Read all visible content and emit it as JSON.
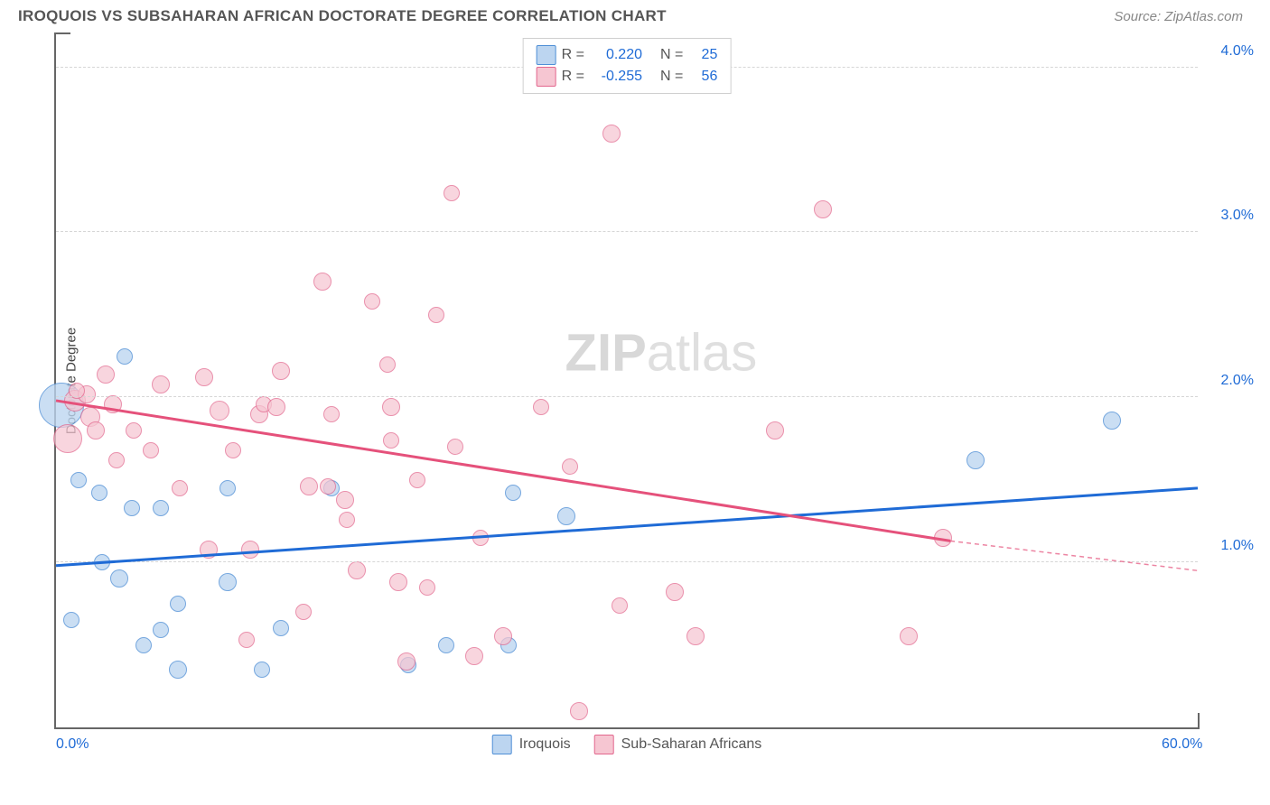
{
  "header": {
    "title": "IROQUOIS VS SUBSAHARAN AFRICAN DOCTORATE DEGREE CORRELATION CHART",
    "source_prefix": "Source: ",
    "source_name": "ZipAtlas.com"
  },
  "watermark": {
    "zip": "ZIP",
    "atlas": "atlas"
  },
  "chart": {
    "type": "scatter",
    "y_axis_title": "Doctorate Degree",
    "xlim": [
      0,
      60
    ],
    "ylim": [
      0,
      4.2
    ],
    "x_ticks": [
      {
        "value": 0,
        "label": "0.0%"
      },
      {
        "value": 60,
        "label": "60.0%"
      }
    ],
    "y_ticks": [
      {
        "value": 1.0,
        "label": "1.0%"
      },
      {
        "value": 2.0,
        "label": "2.0%"
      },
      {
        "value": 3.0,
        "label": "3.0%"
      },
      {
        "value": 4.0,
        "label": "4.0%"
      }
    ],
    "grid_color": "#d6d6d6",
    "background_color": "#ffffff",
    "stats_legend": [
      {
        "swatch_fill": "#bcd5f0",
        "swatch_stroke": "#4f8fd6",
        "r_label": "R =",
        "r_value": "0.220",
        "n_label": "N =",
        "n_value": "25"
      },
      {
        "swatch_fill": "#f6c6d2",
        "swatch_stroke": "#e2668d",
        "r_label": "R =",
        "r_value": "-0.255",
        "n_label": "N =",
        "n_value": "56"
      }
    ],
    "bottom_legend": [
      {
        "swatch_fill": "#bcd5f0",
        "swatch_stroke": "#4f8fd6",
        "label": "Iroquois"
      },
      {
        "swatch_fill": "#f6c6d2",
        "swatch_stroke": "#e2668d",
        "label": "Sub-Saharan Africans"
      }
    ],
    "series": [
      {
        "name": "Iroquois",
        "marker_fill": "#bcd5f0",
        "marker_stroke": "#4f8fd6",
        "marker_opacity": 0.78,
        "base_radius": 9,
        "trend": {
          "color": "#1f6bd6",
          "width": 3,
          "x1": 0,
          "y1": 0.98,
          "x2": 60,
          "y2": 1.45
        },
        "points": [
          {
            "x": 0.3,
            "y": 1.95,
            "r": 25
          },
          {
            "x": 3.6,
            "y": 2.25,
            "r": 9
          },
          {
            "x": 1.2,
            "y": 1.5,
            "r": 9
          },
          {
            "x": 2.3,
            "y": 1.42,
            "r": 9
          },
          {
            "x": 3.3,
            "y": 0.9,
            "r": 10
          },
          {
            "x": 4.6,
            "y": 0.5,
            "r": 9
          },
          {
            "x": 0.8,
            "y": 0.65,
            "r": 9
          },
          {
            "x": 4.0,
            "y": 1.33,
            "r": 9
          },
          {
            "x": 5.5,
            "y": 1.33,
            "r": 9
          },
          {
            "x": 6.4,
            "y": 0.35,
            "r": 10
          },
          {
            "x": 9.0,
            "y": 0.88,
            "r": 10
          },
          {
            "x": 9.0,
            "y": 1.45,
            "r": 9
          },
          {
            "x": 5.5,
            "y": 0.59,
            "r": 9
          },
          {
            "x": 10.8,
            "y": 0.35,
            "r": 9
          },
          {
            "x": 6.4,
            "y": 0.75,
            "r": 9
          },
          {
            "x": 11.8,
            "y": 0.6,
            "r": 9
          },
          {
            "x": 14.5,
            "y": 1.45,
            "r": 9
          },
          {
            "x": 18.5,
            "y": 0.38,
            "r": 9
          },
          {
            "x": 20.5,
            "y": 0.5,
            "r": 9
          },
          {
            "x": 23.8,
            "y": 0.5,
            "r": 9
          },
          {
            "x": 24.0,
            "y": 1.42,
            "r": 9
          },
          {
            "x": 26.8,
            "y": 1.28,
            "r": 10
          },
          {
            "x": 48.3,
            "y": 1.62,
            "r": 10
          },
          {
            "x": 55.5,
            "y": 1.86,
            "r": 10
          },
          {
            "x": 2.4,
            "y": 1.0,
            "r": 9
          }
        ]
      },
      {
        "name": "Sub-Saharan Africans",
        "marker_fill": "#f6c6d2",
        "marker_stroke": "#e2668d",
        "marker_opacity": 0.72,
        "base_radius": 9,
        "trend": {
          "color": "#e5517b",
          "width": 3,
          "x1": 0,
          "y1": 1.98,
          "x2": 47,
          "y2": 1.13,
          "dashed_ext": {
            "x2": 60,
            "y2": 0.95
          }
        },
        "points": [
          {
            "x": 0.6,
            "y": 1.75,
            "r": 16
          },
          {
            "x": 1.0,
            "y": 1.98,
            "r": 12
          },
          {
            "x": 1.6,
            "y": 2.02,
            "r": 10
          },
          {
            "x": 1.8,
            "y": 1.88,
            "r": 11
          },
          {
            "x": 2.6,
            "y": 2.14,
            "r": 10
          },
          {
            "x": 1.1,
            "y": 2.04,
            "r": 9
          },
          {
            "x": 3.0,
            "y": 1.96,
            "r": 10
          },
          {
            "x": 2.1,
            "y": 1.8,
            "r": 10
          },
          {
            "x": 4.1,
            "y": 1.8,
            "r": 9
          },
          {
            "x": 3.2,
            "y": 1.62,
            "r": 9
          },
          {
            "x": 5.5,
            "y": 2.08,
            "r": 10
          },
          {
            "x": 5.0,
            "y": 1.68,
            "r": 9
          },
          {
            "x": 6.5,
            "y": 1.45,
            "r": 9
          },
          {
            "x": 7.8,
            "y": 2.12,
            "r": 10
          },
          {
            "x": 8.6,
            "y": 1.92,
            "r": 11
          },
          {
            "x": 8.0,
            "y": 1.08,
            "r": 10
          },
          {
            "x": 9.3,
            "y": 1.68,
            "r": 9
          },
          {
            "x": 10.2,
            "y": 1.08,
            "r": 10
          },
          {
            "x": 10.7,
            "y": 1.9,
            "r": 10
          },
          {
            "x": 10.9,
            "y": 1.96,
            "r": 9
          },
          {
            "x": 11.6,
            "y": 1.94,
            "r": 10
          },
          {
            "x": 11.8,
            "y": 2.16,
            "r": 10
          },
          {
            "x": 14.0,
            "y": 2.7,
            "r": 10
          },
          {
            "x": 13.3,
            "y": 1.46,
            "r": 10
          },
          {
            "x": 13.0,
            "y": 0.7,
            "r": 9
          },
          {
            "x": 14.3,
            "y": 1.46,
            "r": 9
          },
          {
            "x": 14.5,
            "y": 1.9,
            "r": 9
          },
          {
            "x": 15.2,
            "y": 1.38,
            "r": 10
          },
          {
            "x": 15.3,
            "y": 1.26,
            "r": 9
          },
          {
            "x": 15.8,
            "y": 0.95,
            "r": 10
          },
          {
            "x": 16.6,
            "y": 2.58,
            "r": 9
          },
          {
            "x": 17.4,
            "y": 2.2,
            "r": 9
          },
          {
            "x": 17.6,
            "y": 1.94,
            "r": 10
          },
          {
            "x": 17.6,
            "y": 1.74,
            "r": 9
          },
          {
            "x": 18.0,
            "y": 0.88,
            "r": 10
          },
          {
            "x": 19.0,
            "y": 1.5,
            "r": 9
          },
          {
            "x": 18.4,
            "y": 0.4,
            "r": 10
          },
          {
            "x": 19.5,
            "y": 0.85,
            "r": 9
          },
          {
            "x": 20.0,
            "y": 2.5,
            "r": 9
          },
          {
            "x": 20.8,
            "y": 3.24,
            "r": 9
          },
          {
            "x": 21.0,
            "y": 1.7,
            "r": 9
          },
          {
            "x": 22.0,
            "y": 0.43,
            "r": 10
          },
          {
            "x": 22.3,
            "y": 1.15,
            "r": 9
          },
          {
            "x": 23.5,
            "y": 0.55,
            "r": 10
          },
          {
            "x": 25.5,
            "y": 1.94,
            "r": 9
          },
          {
            "x": 27.0,
            "y": 1.58,
            "r": 9
          },
          {
            "x": 27.5,
            "y": 0.1,
            "r": 10
          },
          {
            "x": 29.2,
            "y": 3.6,
            "r": 10
          },
          {
            "x": 29.6,
            "y": 0.74,
            "r": 9
          },
          {
            "x": 32.5,
            "y": 0.82,
            "r": 10
          },
          {
            "x": 33.6,
            "y": 0.55,
            "r": 10
          },
          {
            "x": 37.8,
            "y": 1.8,
            "r": 10
          },
          {
            "x": 40.3,
            "y": 3.14,
            "r": 10
          },
          {
            "x": 44.8,
            "y": 0.55,
            "r": 10
          },
          {
            "x": 46.6,
            "y": 1.15,
            "r": 10
          },
          {
            "x": 10.0,
            "y": 0.53,
            "r": 9
          }
        ]
      }
    ]
  }
}
